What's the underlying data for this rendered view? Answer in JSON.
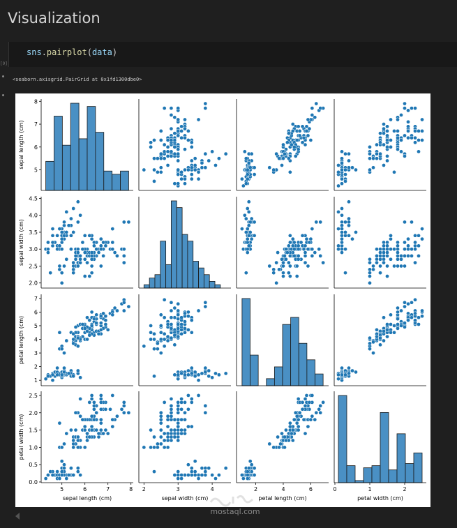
{
  "heading": "Visualization",
  "cell_marker": "[9]",
  "code": {
    "module": "sns",
    "dot": ".",
    "fn": "pairplot",
    "open": "(",
    "arg": "data",
    "close": ")"
  },
  "output_text": "<seaborn.axisgrid.PairGrid at 0x1fd1300dbe0>",
  "watermark": "mostaql.com",
  "colors": {
    "point": "#1f77b4",
    "bar": "#4a90c4",
    "edge": "#1a1a1a",
    "page_bg": "#1f1f1f"
  },
  "chart_data": {
    "type": "scatter",
    "title": "",
    "variables": [
      "sepal length (cm)",
      "sepal width (cm)",
      "petal length (cm)",
      "petal width (cm)"
    ],
    "ranges": [
      [
        4.1,
        8.1
      ],
      [
        1.85,
        4.55
      ],
      [
        0.6,
        7.3
      ],
      [
        -0.02,
        2.62
      ]
    ],
    "ticks": [
      [
        5,
        6,
        7,
        8
      ],
      [
        2.0,
        2.5,
        3.0,
        3.5,
        4.0,
        4.5
      ],
      [
        1,
        2,
        3,
        4,
        5,
        6,
        7
      ],
      [
        0.0,
        0.5,
        1.0,
        1.5,
        2.0,
        2.5
      ]
    ],
    "x_ticks": [
      [
        5,
        6,
        7,
        8
      ],
      [
        2,
        3,
        4
      ],
      [
        2,
        4,
        6
      ],
      [
        0,
        1,
        2
      ]
    ],
    "tick_labels": [
      [
        "5",
        "6",
        "7",
        "8"
      ],
      [
        "2.0",
        "2.5",
        "3.0",
        "3.5",
        "4.0",
        "4.5"
      ],
      [
        "1",
        "2",
        "3",
        "4",
        "5",
        "6",
        "7"
      ],
      [
        "0.0",
        "0.5",
        "1.0",
        "1.5",
        "2.0",
        "2.5"
      ]
    ],
    "x_tick_labels": [
      [
        "5",
        "6",
        "7",
        "8"
      ],
      [
        "2",
        "3",
        "4"
      ],
      [
        "2",
        "4",
        "6"
      ],
      [
        "0",
        "1",
        "2"
      ]
    ],
    "histograms": [
      {
        "bins": [
          4.3,
          4.66,
          5.02,
          5.38,
          5.74,
          6.1,
          6.46,
          6.82,
          7.18,
          7.54,
          7.9
        ],
        "counts": [
          9,
          23,
          14,
          27,
          16,
          26,
          18,
          6,
          5,
          6
        ]
      },
      {
        "bins": [
          2.0,
          2.16,
          2.32,
          2.48,
          2.64,
          2.8,
          2.96,
          3.12,
          3.28,
          3.44,
          3.6,
          3.76,
          3.92,
          4.08,
          4.24,
          4.4
        ],
        "counts": [
          1,
          3,
          4,
          14,
          7,
          26,
          24,
          16,
          14,
          8,
          6,
          4,
          2,
          1,
          0
        ]
      },
      {
        "bins": [
          1.0,
          1.59,
          2.18,
          2.77,
          3.36,
          3.95,
          4.54,
          5.13,
          5.72,
          6.31,
          6.9
        ],
        "counts": [
          37,
          13,
          0,
          3,
          8,
          26,
          29,
          18,
          11,
          5
        ]
      },
      {
        "bins": [
          0.1,
          0.34,
          0.58,
          0.82,
          1.06,
          1.3,
          1.54,
          1.78,
          2.02,
          2.26,
          2.5
        ],
        "counts": [
          41,
          8,
          1,
          7,
          8,
          33,
          6,
          23,
          9,
          14
        ]
      }
    ],
    "observations": [
      [
        5.1,
        3.5,
        1.4,
        0.2
      ],
      [
        4.9,
        3.0,
        1.4,
        0.2
      ],
      [
        4.7,
        3.2,
        1.3,
        0.2
      ],
      [
        4.6,
        3.1,
        1.5,
        0.2
      ],
      [
        5.0,
        3.6,
        1.4,
        0.2
      ],
      [
        5.4,
        3.9,
        1.7,
        0.4
      ],
      [
        4.6,
        3.4,
        1.4,
        0.3
      ],
      [
        5.0,
        3.4,
        1.5,
        0.2
      ],
      [
        4.4,
        2.9,
        1.4,
        0.2
      ],
      [
        4.9,
        3.1,
        1.5,
        0.1
      ],
      [
        5.4,
        3.7,
        1.5,
        0.2
      ],
      [
        4.8,
        3.4,
        1.6,
        0.2
      ],
      [
        4.8,
        3.0,
        1.4,
        0.1
      ],
      [
        4.3,
        3.0,
        1.1,
        0.1
      ],
      [
        5.8,
        4.0,
        1.2,
        0.2
      ],
      [
        5.7,
        4.4,
        1.5,
        0.4
      ],
      [
        5.4,
        3.9,
        1.3,
        0.4
      ],
      [
        5.1,
        3.5,
        1.4,
        0.3
      ],
      [
        5.7,
        3.8,
        1.7,
        0.3
      ],
      [
        5.1,
        3.8,
        1.5,
        0.3
      ],
      [
        5.4,
        3.4,
        1.7,
        0.2
      ],
      [
        5.1,
        3.7,
        1.5,
        0.4
      ],
      [
        4.6,
        3.6,
        1.0,
        0.2
      ],
      [
        5.1,
        3.3,
        1.7,
        0.5
      ],
      [
        4.8,
        3.4,
        1.9,
        0.2
      ],
      [
        5.0,
        3.0,
        1.6,
        0.2
      ],
      [
        5.0,
        3.4,
        1.6,
        0.4
      ],
      [
        5.2,
        3.5,
        1.5,
        0.2
      ],
      [
        5.2,
        3.4,
        1.4,
        0.2
      ],
      [
        4.7,
        3.2,
        1.6,
        0.2
      ],
      [
        4.8,
        3.1,
        1.6,
        0.2
      ],
      [
        5.4,
        3.4,
        1.5,
        0.4
      ],
      [
        5.2,
        4.1,
        1.5,
        0.1
      ],
      [
        5.5,
        4.2,
        1.4,
        0.2
      ],
      [
        4.9,
        3.1,
        1.5,
        0.2
      ],
      [
        5.0,
        3.2,
        1.2,
        0.2
      ],
      [
        5.5,
        3.5,
        1.3,
        0.2
      ],
      [
        4.9,
        3.6,
        1.4,
        0.1
      ],
      [
        4.4,
        3.0,
        1.3,
        0.2
      ],
      [
        5.1,
        3.4,
        1.5,
        0.2
      ],
      [
        5.0,
        3.5,
        1.3,
        0.3
      ],
      [
        4.5,
        2.3,
        1.3,
        0.3
      ],
      [
        4.4,
        3.2,
        1.3,
        0.2
      ],
      [
        5.0,
        3.5,
        1.6,
        0.6
      ],
      [
        5.1,
        3.8,
        1.9,
        0.4
      ],
      [
        4.8,
        3.0,
        1.4,
        0.3
      ],
      [
        5.1,
        3.8,
        1.6,
        0.2
      ],
      [
        4.6,
        3.2,
        1.4,
        0.2
      ],
      [
        5.3,
        3.7,
        1.5,
        0.2
      ],
      [
        5.0,
        3.3,
        1.4,
        0.2
      ],
      [
        7.0,
        3.2,
        4.7,
        1.4
      ],
      [
        6.4,
        3.2,
        4.5,
        1.5
      ],
      [
        6.9,
        3.1,
        4.9,
        1.5
      ],
      [
        5.5,
        2.3,
        4.0,
        1.3
      ],
      [
        6.5,
        2.8,
        4.6,
        1.5
      ],
      [
        5.7,
        2.8,
        4.5,
        1.3
      ],
      [
        6.3,
        3.3,
        4.7,
        1.6
      ],
      [
        4.9,
        2.4,
        3.3,
        1.0
      ],
      [
        6.6,
        2.9,
        4.6,
        1.3
      ],
      [
        5.2,
        2.7,
        3.9,
        1.4
      ],
      [
        5.0,
        2.0,
        3.5,
        1.0
      ],
      [
        5.9,
        3.0,
        4.2,
        1.5
      ],
      [
        6.0,
        2.2,
        4.0,
        1.0
      ],
      [
        6.1,
        2.9,
        4.7,
        1.4
      ],
      [
        5.6,
        2.9,
        3.6,
        1.3
      ],
      [
        6.7,
        3.1,
        4.4,
        1.4
      ],
      [
        5.6,
        3.0,
        4.5,
        1.5
      ],
      [
        5.8,
        2.7,
        4.1,
        1.0
      ],
      [
        6.2,
        2.2,
        4.5,
        1.5
      ],
      [
        5.6,
        2.5,
        3.9,
        1.1
      ],
      [
        5.9,
        3.2,
        4.8,
        1.8
      ],
      [
        6.1,
        2.8,
        4.0,
        1.3
      ],
      [
        6.3,
        2.5,
        4.9,
        1.5
      ],
      [
        6.1,
        2.8,
        4.7,
        1.2
      ],
      [
        6.4,
        2.9,
        4.3,
        1.3
      ],
      [
        6.6,
        3.0,
        4.4,
        1.4
      ],
      [
        6.8,
        2.8,
        4.8,
        1.4
      ],
      [
        6.7,
        3.0,
        5.0,
        1.7
      ],
      [
        6.0,
        2.9,
        4.5,
        1.5
      ],
      [
        5.7,
        2.6,
        3.5,
        1.0
      ],
      [
        5.5,
        2.4,
        3.8,
        1.1
      ],
      [
        5.5,
        2.4,
        3.7,
        1.0
      ],
      [
        5.8,
        2.7,
        3.9,
        1.2
      ],
      [
        6.0,
        2.7,
        5.1,
        1.6
      ],
      [
        5.4,
        3.0,
        4.5,
        1.5
      ],
      [
        6.0,
        3.4,
        4.5,
        1.6
      ],
      [
        6.7,
        3.1,
        4.7,
        1.5
      ],
      [
        6.3,
        2.3,
        4.4,
        1.3
      ],
      [
        5.6,
        3.0,
        4.1,
        1.3
      ],
      [
        5.5,
        2.5,
        4.0,
        1.3
      ],
      [
        5.5,
        2.6,
        4.4,
        1.2
      ],
      [
        6.1,
        3.0,
        4.6,
        1.4
      ],
      [
        5.8,
        2.6,
        4.0,
        1.2
      ],
      [
        5.0,
        2.3,
        3.3,
        1.0
      ],
      [
        5.6,
        2.7,
        4.2,
        1.3
      ],
      [
        5.7,
        3.0,
        4.2,
        1.2
      ],
      [
        5.7,
        2.9,
        4.2,
        1.3
      ],
      [
        6.2,
        2.9,
        4.3,
        1.3
      ],
      [
        5.1,
        2.5,
        3.0,
        1.1
      ],
      [
        5.7,
        2.8,
        4.1,
        1.3
      ],
      [
        6.3,
        3.3,
        6.0,
        2.5
      ],
      [
        5.8,
        2.7,
        5.1,
        1.9
      ],
      [
        7.1,
        3.0,
        5.9,
        2.1
      ],
      [
        6.3,
        2.9,
        5.6,
        1.8
      ],
      [
        6.5,
        3.0,
        5.8,
        2.2
      ],
      [
        7.6,
        3.0,
        6.6,
        2.1
      ],
      [
        4.9,
        2.5,
        4.5,
        1.7
      ],
      [
        7.3,
        2.9,
        6.3,
        1.8
      ],
      [
        6.7,
        2.5,
        5.8,
        1.8
      ],
      [
        7.2,
        3.6,
        6.1,
        2.5
      ],
      [
        6.5,
        3.2,
        5.1,
        2.0
      ],
      [
        6.4,
        2.7,
        5.3,
        1.9
      ],
      [
        6.8,
        3.0,
        5.5,
        2.1
      ],
      [
        5.7,
        2.5,
        5.0,
        2.0
      ],
      [
        5.8,
        2.8,
        5.1,
        2.4
      ],
      [
        6.4,
        3.2,
        5.3,
        2.3
      ],
      [
        6.5,
        3.0,
        5.5,
        1.8
      ],
      [
        7.7,
        3.8,
        6.7,
        2.2
      ],
      [
        7.7,
        2.6,
        6.9,
        2.3
      ],
      [
        6.0,
        2.2,
        5.0,
        1.5
      ],
      [
        6.9,
        3.2,
        5.7,
        2.3
      ],
      [
        5.6,
        2.8,
        4.9,
        2.0
      ],
      [
        7.7,
        2.8,
        6.7,
        2.0
      ],
      [
        6.3,
        2.7,
        4.9,
        1.8
      ],
      [
        6.7,
        3.3,
        5.7,
        2.1
      ],
      [
        7.2,
        3.2,
        6.0,
        1.8
      ],
      [
        6.2,
        2.8,
        4.8,
        1.8
      ],
      [
        6.1,
        3.0,
        4.9,
        1.8
      ],
      [
        6.4,
        2.8,
        5.6,
        2.1
      ],
      [
        7.2,
        3.0,
        5.8,
        1.6
      ],
      [
        7.4,
        2.8,
        6.1,
        1.9
      ],
      [
        7.9,
        3.8,
        6.4,
        2.0
      ],
      [
        6.4,
        2.8,
        5.6,
        2.2
      ],
      [
        6.3,
        2.8,
        5.1,
        1.5
      ],
      [
        6.1,
        2.6,
        5.6,
        1.4
      ],
      [
        7.7,
        3.0,
        6.1,
        2.3
      ],
      [
        6.3,
        3.4,
        5.6,
        2.4
      ],
      [
        6.4,
        3.1,
        5.5,
        1.8
      ],
      [
        6.0,
        3.0,
        4.8,
        1.8
      ],
      [
        6.9,
        3.1,
        5.4,
        2.1
      ],
      [
        6.7,
        3.1,
        5.6,
        2.4
      ],
      [
        6.9,
        3.1,
        5.1,
        2.3
      ],
      [
        5.8,
        2.7,
        5.1,
        1.9
      ],
      [
        6.8,
        3.2,
        5.9,
        2.3
      ],
      [
        6.7,
        3.3,
        5.7,
        2.5
      ],
      [
        6.7,
        3.0,
        5.2,
        2.3
      ],
      [
        6.3,
        2.5,
        5.0,
        1.9
      ],
      [
        6.5,
        3.0,
        5.2,
        2.0
      ],
      [
        6.2,
        3.4,
        5.4,
        2.3
      ],
      [
        5.9,
        3.0,
        5.1,
        1.8
      ]
    ]
  }
}
